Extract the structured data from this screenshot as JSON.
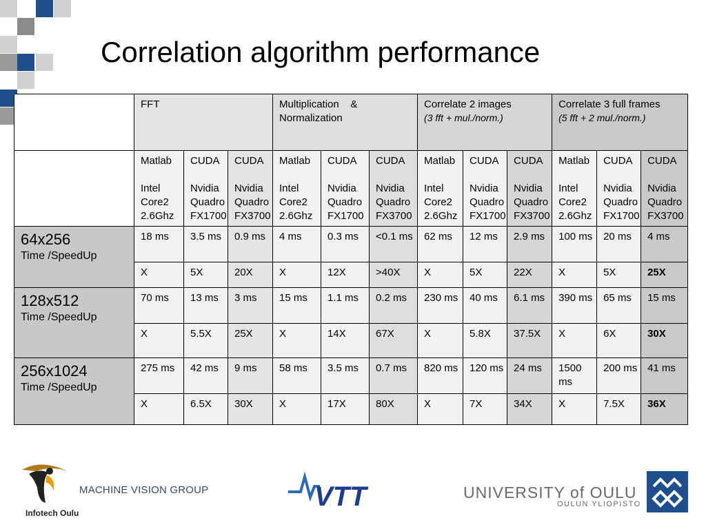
{
  "slide": {
    "title": "Correlation algorithm performance"
  },
  "header": {
    "groups": [
      {
        "title": "FFT",
        "subtitle": ""
      },
      {
        "title": "Multiplication    & Normalization",
        "subtitle": ""
      },
      {
        "title": "Correlate 2 images",
        "subtitle": "(3 fft + mul./norm.)"
      },
      {
        "title": "Correlate 3 full frames",
        "subtitle": "(5 fft + 2 mul./norm.)"
      }
    ],
    "platforms": [
      {
        "line1": "Matlab",
        "line2": "Intel",
        "line3": "Core2",
        "line4": "2.6Ghz"
      },
      {
        "line1": "CUDA",
        "line2": "Nvidia",
        "line3": "Quadro",
        "line4": "FX1700"
      },
      {
        "line1": "CUDA",
        "line2": "Nvidia",
        "line3": "Quadro",
        "line4": "FX3700"
      }
    ]
  },
  "rows": [
    {
      "size": "64x256",
      "label": "Time /SpeedUp",
      "times": [
        "18  ms",
        "3.5 ms",
        "0.9 ms",
        "4 ms",
        "0.3 ms",
        "<0.1 ms",
        "62 ms",
        "12 ms",
        "2.9 ms",
        "100 ms",
        "20 ms",
        "4 ms"
      ],
      "speedups": [
        "X",
        "5X",
        "20X",
        "X",
        "12X",
        ">40X",
        "X",
        "5X",
        "22X",
        "X",
        "5X",
        "25X"
      ]
    },
    {
      "size": "128x512",
      "label": "Time /SpeedUp",
      "times": [
        "70 ms",
        "13 ms",
        "3 ms",
        "15 ms",
        "1.1 ms",
        "0.2 ms",
        "230 ms",
        "40 ms",
        "6.1 ms",
        "390 ms",
        "65 ms",
        "15 ms"
      ],
      "speedups": [
        "X",
        "5.5X",
        "25X",
        "X",
        "14X",
        "67X",
        "X",
        "5.8X",
        "37.5X",
        "X",
        "6X",
        "30X"
      ]
    },
    {
      "size": "256x1024",
      "label": "Time /SpeedUp",
      "times": [
        "275 ms",
        "42 ms",
        "9 ms",
        "58 ms",
        "3.5 ms",
        "0.7 ms",
        "820 ms",
        "120 ms",
        "24 ms",
        "1500 ms",
        "200 ms",
        "41 ms"
      ],
      "speedups": [
        "X",
        "6.5X",
        "30X",
        "X",
        "17X",
        "80X",
        "X",
        "7X",
        "34X",
        "X",
        "7.5X",
        "36X"
      ]
    }
  ],
  "footer": {
    "group": "MACHINE VISION GROUP",
    "infotech": "Infotech Oulu",
    "vtt": "VTT",
    "university": "UNIVERSITY of OULU",
    "university_fi": "OULUN YLIOPISTO"
  },
  "colors": {
    "accent_blue": "#1f4e8c",
    "deco_grey": "#b4b4b4",
    "row_label_bg": "#c8c8c8"
  }
}
